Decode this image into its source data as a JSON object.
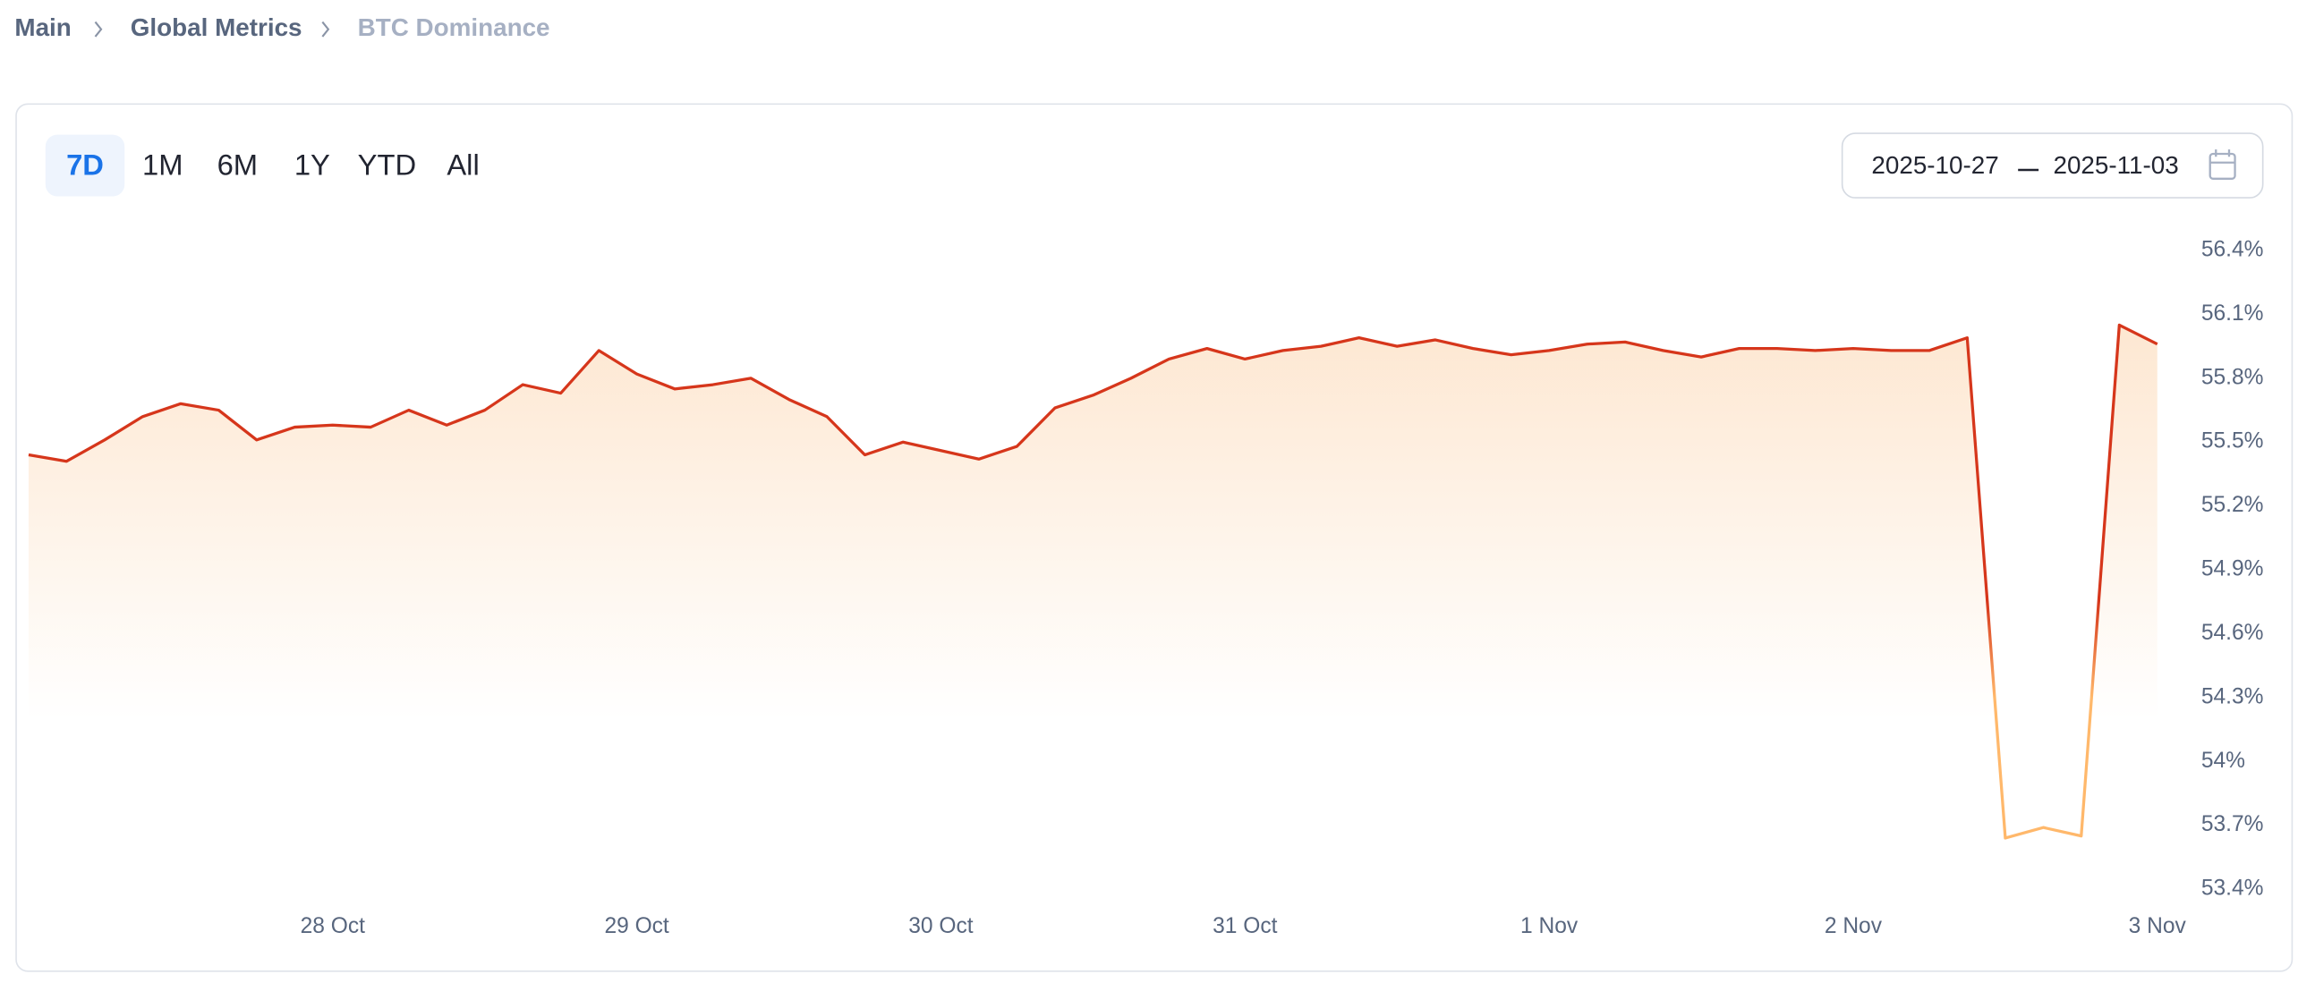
{
  "breadcrumbs": [
    "Main",
    "Global Metrics",
    "BTC Dominance"
  ],
  "toolbar": {
    "ranges": [
      "7D",
      "1M",
      "6M",
      "1Y",
      "YTD",
      "All"
    ],
    "active_range": 0
  },
  "date_range": {
    "start": "2025-10-27",
    "end": "2025-11-03"
  },
  "chart_data": {
    "type": "line",
    "categories": [
      null,
      null,
      null,
      null,
      null,
      null,
      null,
      null,
      "28 Oct",
      null,
      null,
      null,
      null,
      null,
      null,
      null,
      "29 Oct",
      null,
      null,
      null,
      null,
      null,
      null,
      null,
      "30 Oct",
      null,
      null,
      null,
      null,
      null,
      null,
      null,
      "31 Oct",
      null,
      null,
      null,
      null,
      null,
      null,
      null,
      "1 Nov",
      null,
      null,
      null,
      null,
      null,
      null,
      null,
      "2 Nov",
      null,
      null,
      null,
      null,
      null,
      null,
      null,
      "3 Nov"
    ],
    "values": [
      55.44,
      55.41,
      55.51,
      55.62,
      55.68,
      55.65,
      55.51,
      55.57,
      55.58,
      55.57,
      55.65,
      55.58,
      55.65,
      55.77,
      55.73,
      55.93,
      55.82,
      55.75,
      55.77,
      55.8,
      55.7,
      55.62,
      55.44,
      55.5,
      55.46,
      55.42,
      55.48,
      55.66,
      55.72,
      55.8,
      55.89,
      55.94,
      55.89,
      55.93,
      55.95,
      55.99,
      55.95,
      55.98,
      55.94,
      55.91,
      55.93,
      55.96,
      55.97,
      55.93,
      55.9,
      55.94,
      55.94,
      55.93,
      55.94,
      55.93,
      55.93,
      55.99,
      53.64,
      53.69,
      53.65,
      56.05,
      55.96
    ],
    "colors": [
      "#d6361b",
      "#ffb86b"
    ],
    "fill_color": "#fde6cf",
    "ylim": [
      53.4,
      56.4
    ],
    "yticks": [
      {
        "value": 53.4,
        "label": "53.4%"
      },
      {
        "value": 53.7,
        "label": "53.7%"
      },
      {
        "value": 54,
        "label": "54%"
      },
      {
        "value": 54.3,
        "label": "54.3%"
      },
      {
        "value": 54.6,
        "label": "54.6%"
      },
      {
        "value": 54.9,
        "label": "54.9%"
      },
      {
        "value": 55.2,
        "label": "55.2%"
      },
      {
        "value": 55.5,
        "label": "55.5%"
      },
      {
        "value": 55.8,
        "label": "55.8%"
      },
      {
        "value": 56.1,
        "label": "56.1%"
      },
      {
        "value": 56.4,
        "label": "56.4%"
      }
    ],
    "grid": false
  }
}
